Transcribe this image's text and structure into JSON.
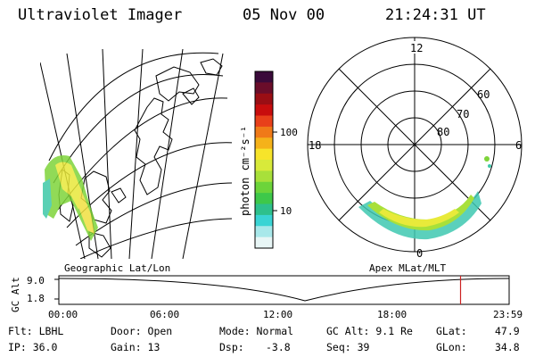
{
  "header": {
    "title": "Ultraviolet Imager",
    "date": "05 Nov 00",
    "time": "21:24:31 UT"
  },
  "left_panel": {
    "label": "Geographic Lat/Lon"
  },
  "right_panel": {
    "label": "Apex MLat/MLT",
    "mlt_labels": [
      "12",
      "18",
      "6",
      "0"
    ],
    "lat_labels": [
      "60",
      "70",
      "80"
    ]
  },
  "colorbar": {
    "unit_label": "photon cm⁻²s⁻¹",
    "ticks": [
      "100",
      "10"
    ],
    "colors": [
      "#3a0a3a",
      "#6a0d2a",
      "#9a0e14",
      "#c80d0d",
      "#e8401a",
      "#f07a18",
      "#f5b21a",
      "#f7e42a",
      "#d8ea3a",
      "#a8e03a",
      "#6cd43a",
      "#3ec84a",
      "#2ec08c",
      "#3ad4d4",
      "#a8e8ea",
      "#e8f6f6"
    ]
  },
  "altitude_plot": {
    "y_axis_label": "GC Alt",
    "y_ticks": [
      "9.0",
      "1.8"
    ],
    "x_ticks": [
      "00:00",
      "06:00",
      "12:00",
      "18:00",
      "23:59"
    ],
    "current_time_marker_hours": 21.41,
    "marker_color": "#cc2222"
  },
  "info": {
    "flt": "Flt: LBHL",
    "ip": "IP: 36.0",
    "door": "Door: Open",
    "gain": "Gain: 13",
    "mode": "Mode: Normal",
    "dsp_label": "Dsp:",
    "dsp_value": "-3.8",
    "gc_alt": "GC Alt: 9.1 Re",
    "seq": "Seq: 39",
    "glat_label": "GLat:",
    "glat_value": "47.9",
    "glon_label": "GLon:",
    "glon_value": "34.8"
  }
}
